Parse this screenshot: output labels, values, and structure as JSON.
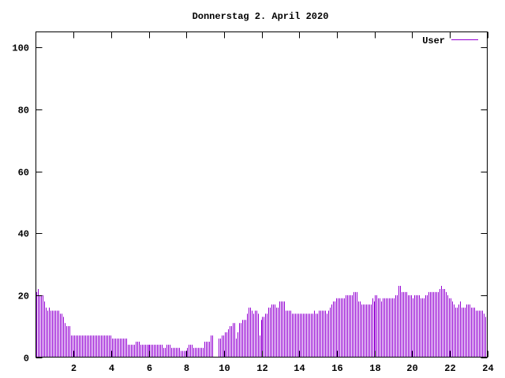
{
  "chart_data": {
    "type": "bar",
    "title": "Donnerstag 2. April 2020",
    "xlabel": "",
    "ylabel": "",
    "xlim": [
      0,
      24
    ],
    "ylim": [
      0,
      105
    ],
    "x_ticks": [
      "2",
      "4",
      "6",
      "8",
      "10",
      "12",
      "14",
      "16",
      "18",
      "20",
      "22",
      "24"
    ],
    "y_ticks": [
      "0",
      "20",
      "40",
      "60",
      "80",
      "100"
    ],
    "grid": false,
    "legend_position": "top-right",
    "x_interval_hours": 0.0833,
    "series": [
      {
        "name": "User",
        "color": "#9400d3",
        "values": [
          21,
          22,
          20,
          20,
          20,
          18,
          16,
          15,
          16,
          15,
          15,
          15,
          15,
          15,
          15,
          14,
          14,
          13,
          11,
          10,
          10,
          10,
          7,
          7,
          7,
          7,
          7,
          7,
          7,
          7,
          7,
          7,
          7,
          7,
          7,
          7,
          7,
          7,
          7,
          7,
          7,
          7,
          7,
          7,
          7,
          7,
          7,
          7,
          6,
          6,
          6,
          6,
          6,
          6,
          6,
          6,
          6,
          6,
          4,
          4,
          4,
          4,
          4,
          5,
          5,
          5,
          4,
          4,
          4,
          4,
          4,
          4,
          4,
          4,
          4,
          4,
          4,
          4,
          4,
          4,
          4,
          3,
          3,
          4,
          4,
          4,
          3,
          3,
          3,
          3,
          3,
          3,
          2,
          2,
          2,
          2,
          3,
          4,
          4,
          4,
          3,
          3,
          3,
          3,
          3,
          3,
          3,
          5,
          5,
          5,
          5,
          7,
          7,
          0,
          0,
          0,
          6,
          6,
          7,
          7,
          8,
          8,
          9,
          10,
          10,
          11,
          11,
          6,
          8,
          11,
          11,
          12,
          12,
          12,
          14,
          16,
          16,
          15,
          14,
          15,
          15,
          14,
          7,
          12,
          13,
          13,
          14,
          14,
          16,
          16,
          17,
          17,
          17,
          16,
          16,
          18,
          18,
          18,
          18,
          15,
          15,
          15,
          15,
          14,
          14,
          14,
          14,
          14,
          14,
          14,
          14,
          14,
          14,
          14,
          14,
          14,
          14,
          15,
          14,
          14,
          15,
          15,
          15,
          15,
          15,
          14,
          15,
          16,
          17,
          18,
          18,
          19,
          19,
          19,
          19,
          19,
          19,
          20,
          20,
          20,
          20,
          20,
          21,
          21,
          21,
          18,
          18,
          17,
          17,
          17,
          17,
          17,
          17,
          17,
          19,
          18,
          20,
          20,
          19,
          19,
          18,
          19,
          19,
          19,
          19,
          19,
          19,
          19,
          19,
          20,
          20,
          23,
          23,
          21,
          21,
          21,
          21,
          20,
          20,
          20,
          19,
          20,
          20,
          20,
          20,
          19,
          19,
          19,
          20,
          20,
          21,
          21,
          21,
          21,
          21,
          21,
          21,
          22,
          23,
          22,
          22,
          21,
          20,
          19,
          19,
          18,
          17,
          16,
          16,
          17,
          18,
          16,
          16,
          16,
          17,
          17,
          17,
          16,
          16,
          16,
          15,
          15,
          15,
          15,
          15,
          14,
          13,
          13
        ]
      }
    ]
  }
}
